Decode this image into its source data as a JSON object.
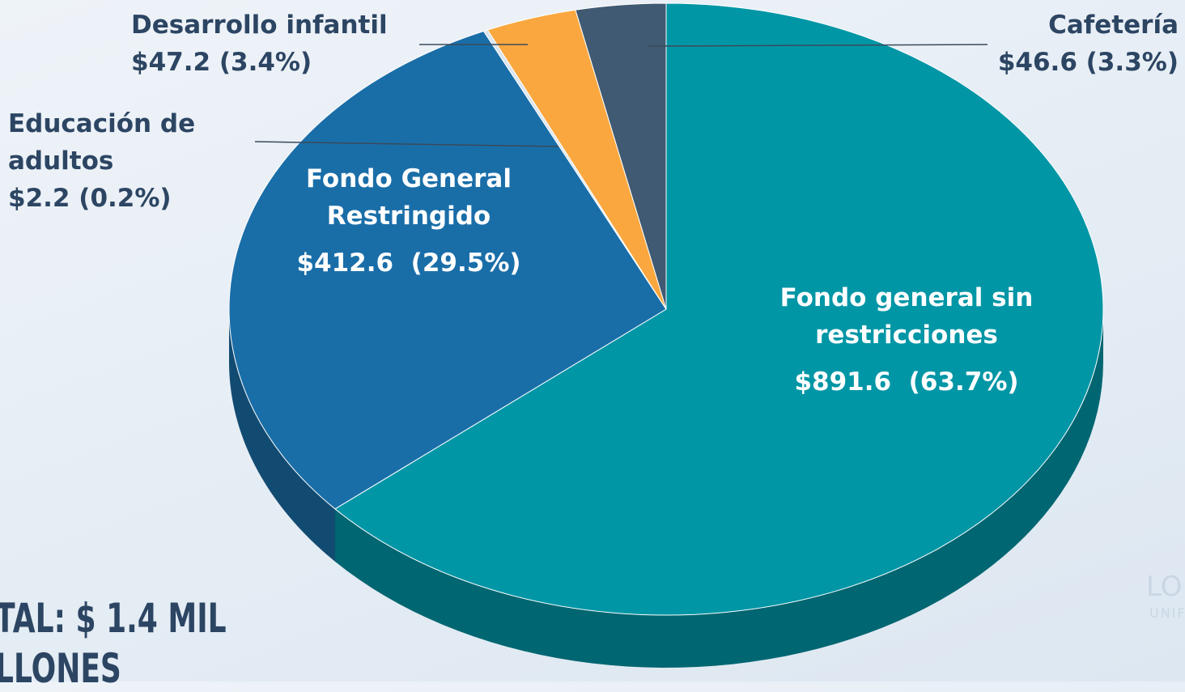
{
  "chart_data": {
    "type": "pie",
    "categories": [
      "Fondo general sin restricciones",
      "Fondo General Restringido",
      "Educación de adultos",
      "Desarrollo infantil",
      "Cafetería"
    ],
    "values": [
      891.6,
      412.6,
      2.2,
      47.2,
      46.6
    ],
    "value_labels": [
      "$891.6  (63.7%)",
      "$412.6  (29.5%)",
      "$2.2 (0.2%)",
      "$47.2 (3.4%)",
      "$46.6 (3.3%)"
    ],
    "colors": [
      "#0096a6",
      "#1a6ea8",
      "#d9e4ee",
      "#f9a73e",
      "#3f5a72"
    ],
    "annotations": [
      "TAL: $ 1.4 MIL",
      "LLONES"
    ],
    "logo_text": [
      "LO",
      "UNIF"
    ]
  }
}
